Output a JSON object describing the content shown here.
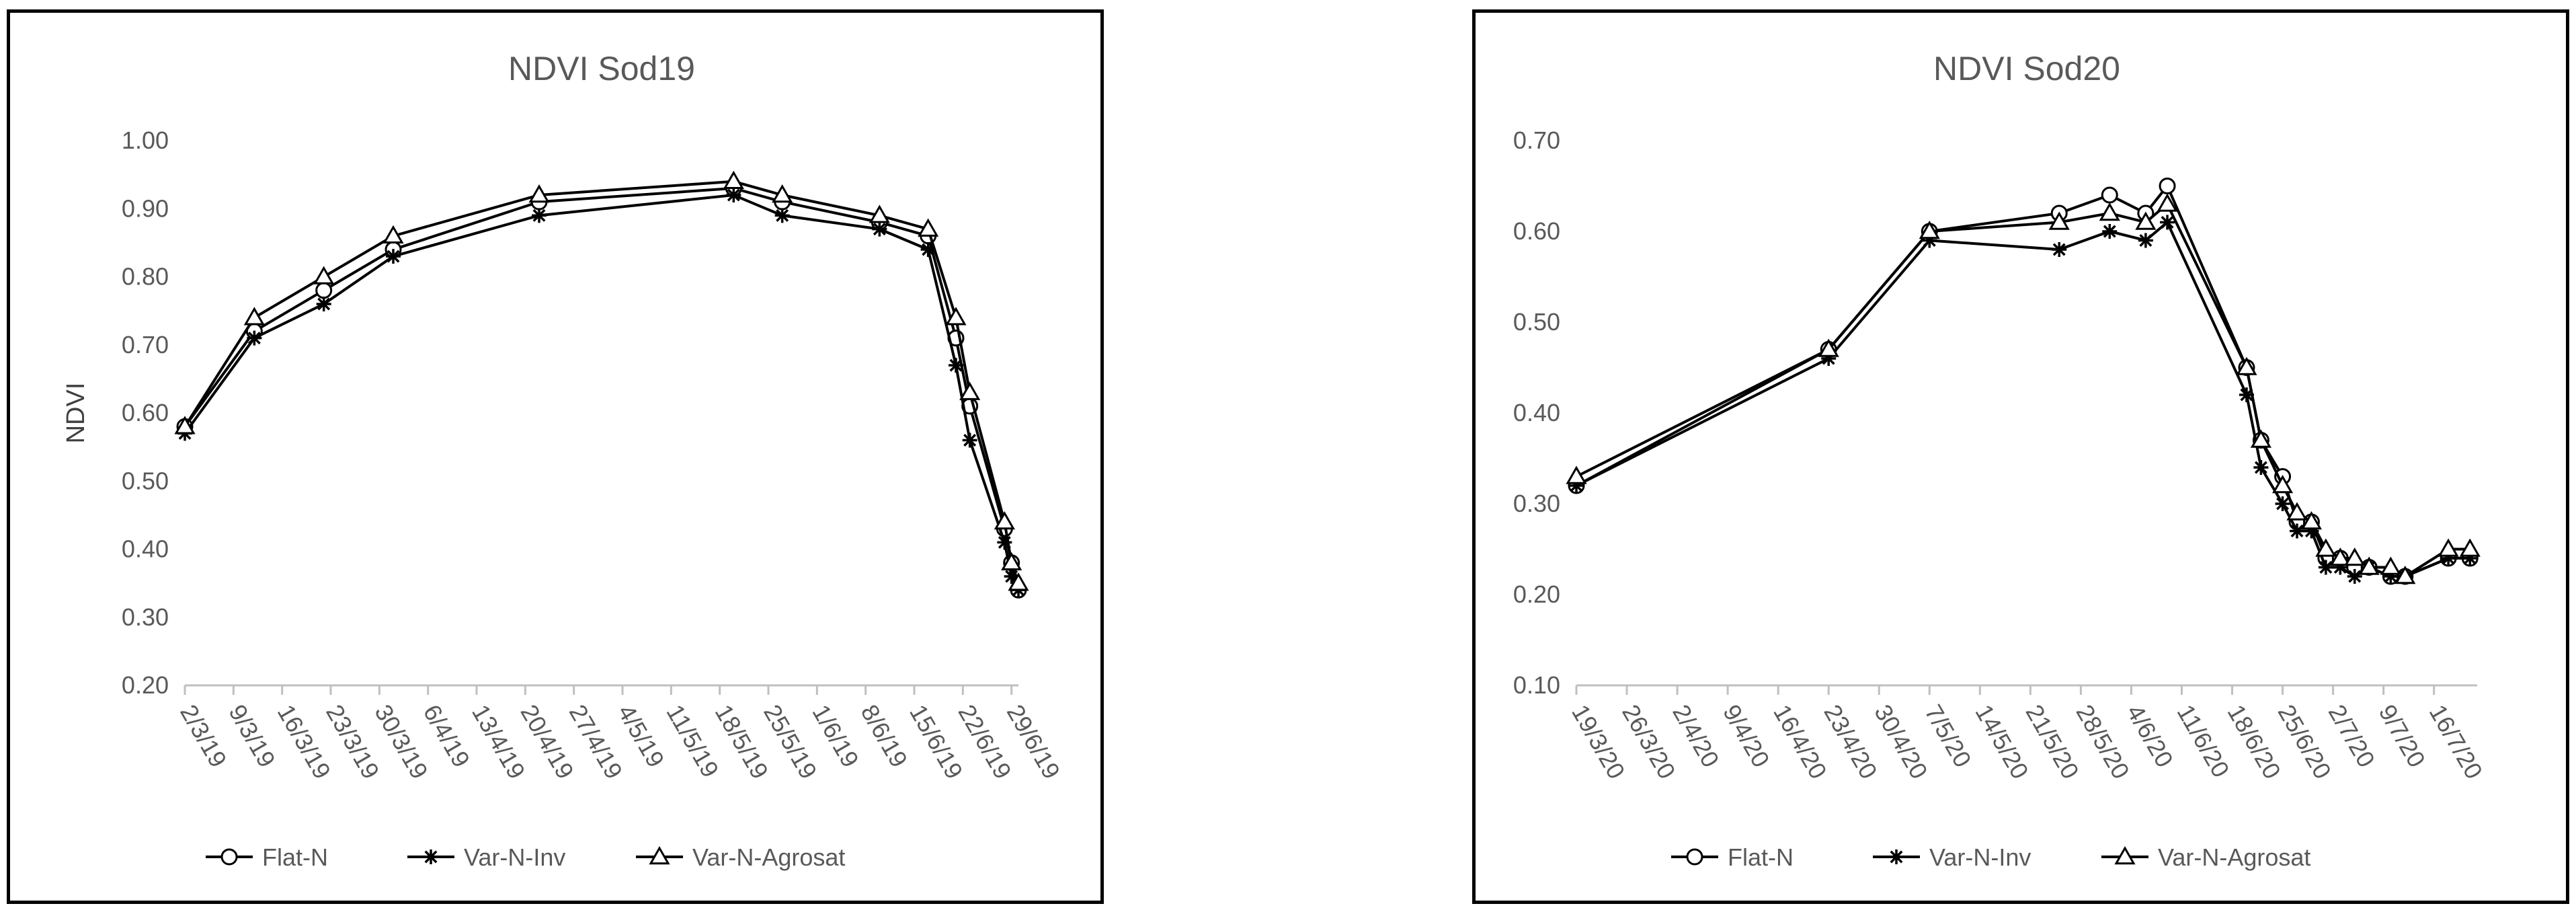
{
  "chart_data": [
    {
      "type": "line",
      "title": "NDVI Sod19",
      "xlabel": "",
      "ylabel": "NDVI",
      "ylim": [
        0.2,
        1.0
      ],
      "yticks": [
        "0.20",
        "0.30",
        "0.40",
        "0.50",
        "0.60",
        "0.70",
        "0.80",
        "0.90",
        "1.00"
      ],
      "xlim": [
        "2019-03-02",
        "2019-06-30"
      ],
      "xticks": [
        "2/3/19",
        "9/3/19",
        "16/3/19",
        "23/3/19",
        "30/3/19",
        "6/4/19",
        "13/4/19",
        "20/4/19",
        "27/4/19",
        "4/5/19",
        "11/5/19",
        "18/5/19",
        "25/5/19",
        "1/6/19",
        "8/6/19",
        "15/6/19",
        "22/6/19",
        "29/6/19"
      ],
      "grid": false,
      "legend": "bottom",
      "series": [
        {
          "name": "Flat-N",
          "marker": "circle",
          "x": [
            "2019-03-02",
            "2019-03-12",
            "2019-03-22",
            "2019-04-01",
            "2019-04-22",
            "2019-05-20",
            "2019-05-27",
            "2019-06-10",
            "2019-06-17",
            "2019-06-21",
            "2019-06-23",
            "2019-06-28",
            "2019-06-29",
            "2019-06-30"
          ],
          "values": [
            0.58,
            0.72,
            0.78,
            0.84,
            0.91,
            0.93,
            0.91,
            0.88,
            0.86,
            0.71,
            0.61,
            0.43,
            0.38,
            0.34
          ]
        },
        {
          "name": "Var-N-Inv",
          "marker": "star",
          "x": [
            "2019-03-02",
            "2019-03-12",
            "2019-03-22",
            "2019-04-01",
            "2019-04-22",
            "2019-05-20",
            "2019-05-27",
            "2019-06-10",
            "2019-06-17",
            "2019-06-21",
            "2019-06-23",
            "2019-06-28",
            "2019-06-29",
            "2019-06-30"
          ],
          "values": [
            0.57,
            0.71,
            0.76,
            0.83,
            0.89,
            0.92,
            0.89,
            0.87,
            0.84,
            0.67,
            0.56,
            0.41,
            0.36,
            0.34
          ]
        },
        {
          "name": "Var-N-Agrosat",
          "marker": "triangle",
          "x": [
            "2019-03-02",
            "2019-03-12",
            "2019-03-22",
            "2019-04-01",
            "2019-04-22",
            "2019-05-20",
            "2019-05-27",
            "2019-06-10",
            "2019-06-17",
            "2019-06-21",
            "2019-06-23",
            "2019-06-28",
            "2019-06-29",
            "2019-06-30"
          ],
          "values": [
            0.58,
            0.74,
            0.8,
            0.86,
            0.92,
            0.94,
            0.92,
            0.89,
            0.87,
            0.74,
            0.63,
            0.44,
            0.38,
            0.35
          ]
        }
      ]
    },
    {
      "type": "line",
      "title": "NDVI Sod20",
      "xlabel": "",
      "ylabel": "",
      "ylim": [
        0.1,
        0.7
      ],
      "yticks": [
        "0.10",
        "0.20",
        "0.30",
        "0.40",
        "0.50",
        "0.60",
        "0.70"
      ],
      "xlim": [
        "2020-03-19",
        "2020-07-22"
      ],
      "xticks": [
        "19/3/20",
        "26/3/20",
        "2/4/20",
        "9/4/20",
        "16/4/20",
        "23/4/20",
        "30/4/20",
        "7/5/20",
        "14/5/20",
        "21/5/20",
        "28/5/20",
        "4/6/20",
        "11/6/20",
        "18/6/20",
        "25/6/20",
        "2/7/20",
        "9/7/20",
        "16/7/20"
      ],
      "grid": false,
      "legend": "bottom",
      "series": [
        {
          "name": "Flat-N",
          "marker": "circle",
          "x": [
            "2020-03-19",
            "2020-04-23",
            "2020-05-07",
            "2020-05-25",
            "2020-06-01",
            "2020-06-06",
            "2020-06-09",
            "2020-06-20",
            "2020-06-22",
            "2020-06-25",
            "2020-06-27",
            "2020-06-29",
            "2020-07-01",
            "2020-07-03",
            "2020-07-05",
            "2020-07-07",
            "2020-07-10",
            "2020-07-12",
            "2020-07-18",
            "2020-07-21"
          ],
          "values": [
            0.32,
            0.47,
            0.6,
            0.62,
            0.64,
            0.62,
            0.65,
            0.45,
            0.37,
            0.33,
            0.28,
            0.28,
            0.24,
            0.24,
            0.23,
            0.23,
            0.22,
            0.22,
            0.24,
            0.24
          ]
        },
        {
          "name": "Var-N-Inv",
          "marker": "star",
          "x": [
            "2020-03-19",
            "2020-04-23",
            "2020-05-07",
            "2020-05-25",
            "2020-06-01",
            "2020-06-06",
            "2020-06-09",
            "2020-06-20",
            "2020-06-22",
            "2020-06-25",
            "2020-06-27",
            "2020-06-29",
            "2020-07-01",
            "2020-07-03",
            "2020-07-05",
            "2020-07-07",
            "2020-07-10",
            "2020-07-12",
            "2020-07-18",
            "2020-07-21"
          ],
          "values": [
            0.32,
            0.46,
            0.59,
            0.58,
            0.6,
            0.59,
            0.61,
            0.42,
            0.34,
            0.3,
            0.27,
            0.27,
            0.23,
            0.23,
            0.22,
            0.23,
            0.22,
            0.22,
            0.24,
            0.24
          ]
        },
        {
          "name": "Var-N-Agrosat",
          "marker": "triangle",
          "x": [
            "2020-03-19",
            "2020-04-23",
            "2020-05-07",
            "2020-05-25",
            "2020-06-01",
            "2020-06-06",
            "2020-06-09",
            "2020-06-20",
            "2020-06-22",
            "2020-06-25",
            "2020-06-27",
            "2020-06-29",
            "2020-07-01",
            "2020-07-03",
            "2020-07-05",
            "2020-07-07",
            "2020-07-10",
            "2020-07-12",
            "2020-07-18",
            "2020-07-21"
          ],
          "values": [
            0.33,
            0.47,
            0.6,
            0.61,
            0.62,
            0.61,
            0.63,
            0.45,
            0.37,
            0.32,
            0.29,
            0.28,
            0.25,
            0.24,
            0.24,
            0.23,
            0.23,
            0.22,
            0.25,
            0.25
          ]
        }
      ]
    }
  ]
}
